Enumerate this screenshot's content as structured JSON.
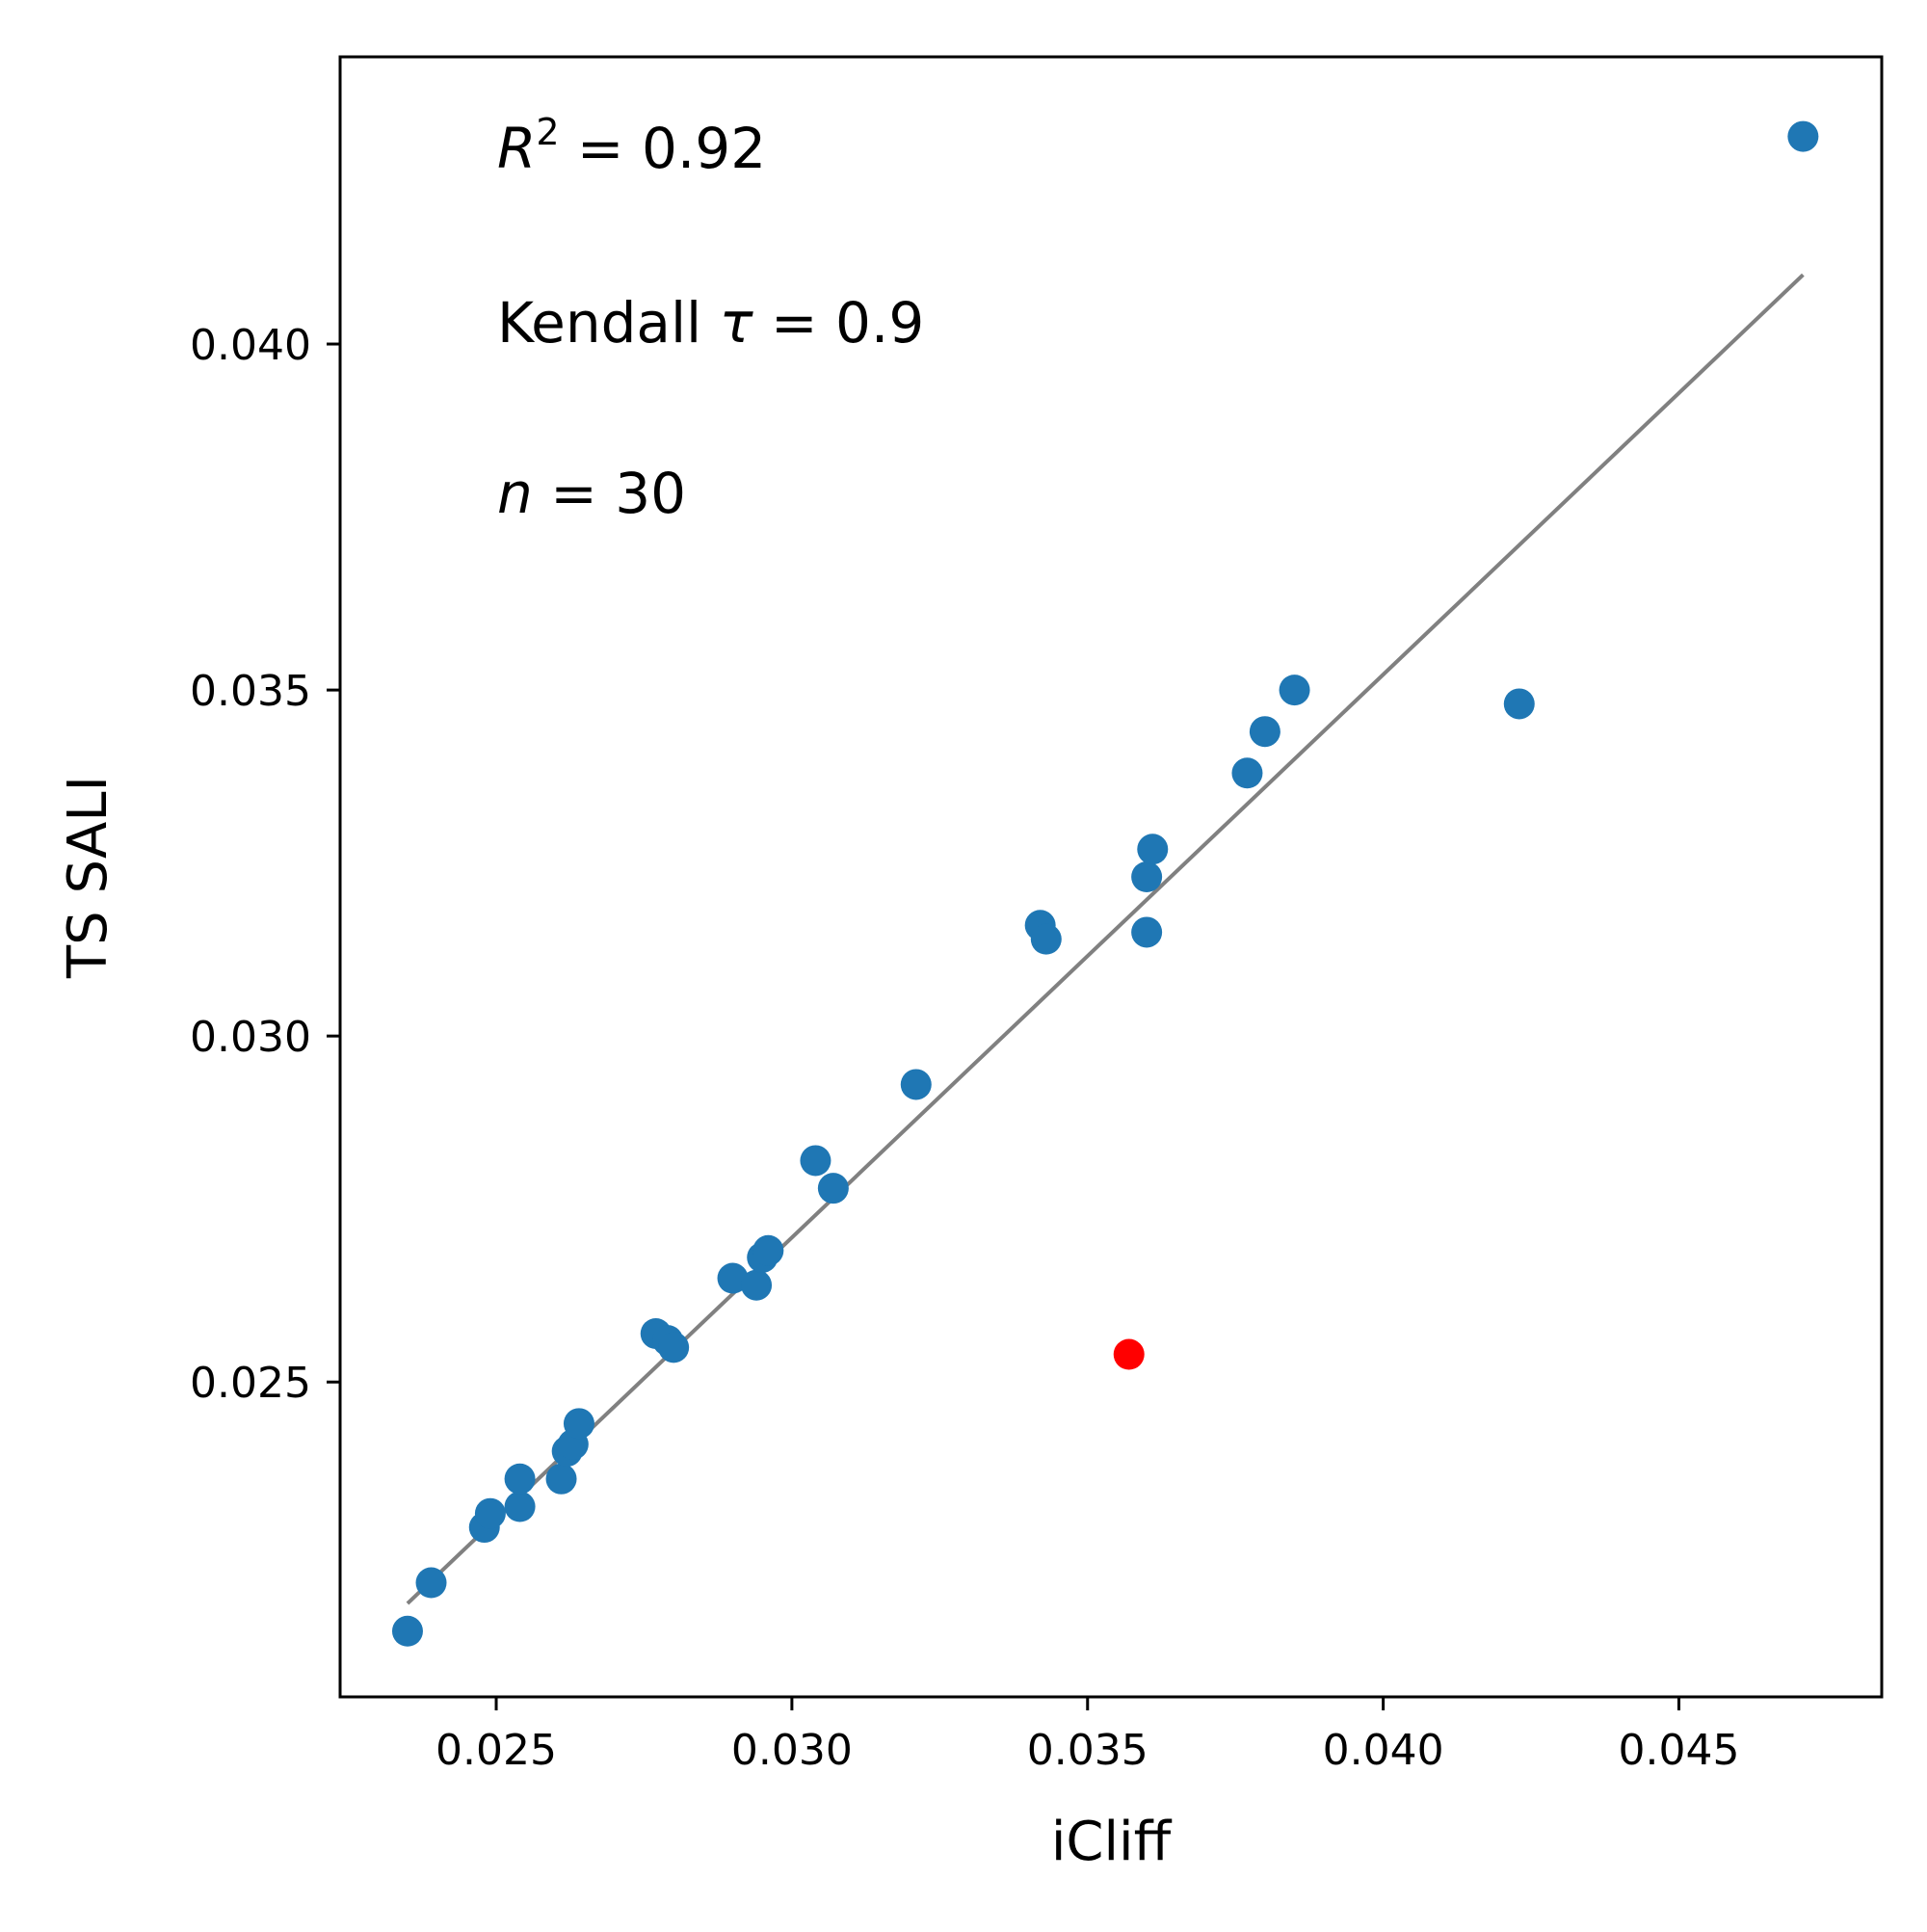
{
  "chart_data": {
    "type": "scatter",
    "xlabel": "iCliff",
    "ylabel": "TS SALI",
    "xlim": [
      0.02236,
      0.04843
    ],
    "ylim": [
      0.02045,
      0.04415
    ],
    "xticks": [
      "0.025",
      "0.030",
      "0.035",
      "0.040",
      "0.045"
    ],
    "yticks": [
      "0.025",
      "0.030",
      "0.035",
      "0.040"
    ],
    "xtick_values": [
      0.025,
      0.03,
      0.035,
      0.04,
      0.045
    ],
    "ytick_values": [
      0.025,
      0.03,
      0.035,
      0.04
    ],
    "grid": false,
    "annotations": {
      "r2_symbol": "R",
      "r2_sup": "2",
      "r2_rest": " = 0.92",
      "kendall_prefix": "Kendall ",
      "kendall_symbol": "τ",
      "kendall_rest": " = 0.9",
      "n_symbol": "n",
      "n_rest": " = 30"
    },
    "series": [
      {
        "color": "#1f77b4",
        "points": [
          [
            0.0235,
            0.0214
          ],
          [
            0.0239,
            0.0221
          ],
          [
            0.0248,
            0.0229
          ],
          [
            0.0249,
            0.0231
          ],
          [
            0.0254,
            0.0232
          ],
          [
            0.0254,
            0.0236
          ],
          [
            0.0261,
            0.0236
          ],
          [
            0.0262,
            0.024
          ],
          [
            0.0263,
            0.0241
          ],
          [
            0.0264,
            0.0244
          ],
          [
            0.0277,
            0.0257
          ],
          [
            0.0279,
            0.0256
          ],
          [
            0.028,
            0.0255
          ],
          [
            0.029,
            0.0265
          ],
          [
            0.0294,
            0.0264
          ],
          [
            0.0295,
            0.0268
          ],
          [
            0.0296,
            0.0269
          ],
          [
            0.0304,
            0.0282
          ],
          [
            0.0307,
            0.0278
          ],
          [
            0.0321,
            0.0293
          ],
          [
            0.0342,
            0.0316
          ],
          [
            0.0343,
            0.0314
          ],
          [
            0.036,
            0.0315
          ],
          [
            0.036,
            0.0323
          ],
          [
            0.0361,
            0.0327
          ],
          [
            0.0377,
            0.0338
          ],
          [
            0.038,
            0.0344
          ],
          [
            0.0385,
            0.035
          ],
          [
            0.0423,
            0.0348
          ],
          [
            0.0471,
            0.043
          ]
        ]
      },
      {
        "color": "#ff0000",
        "points": [
          [
            0.0357,
            0.0254
          ]
        ]
      }
    ],
    "fit_line": {
      "color": "#808080",
      "x": [
        0.0235,
        0.0471
      ],
      "y": [
        0.0218,
        0.041
      ]
    }
  }
}
